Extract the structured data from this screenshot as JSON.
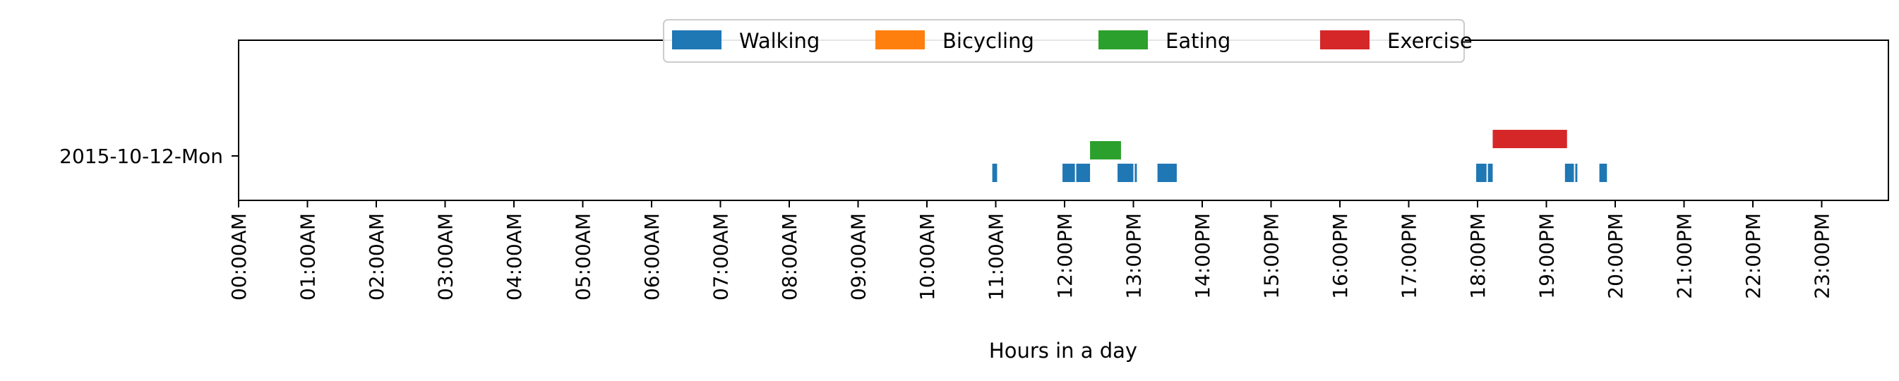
{
  "chart_data": {
    "type": "bar",
    "orientation": "horizontal-timeline",
    "title": "",
    "xlabel": "Hours in a day",
    "ylabel": "",
    "xlim": [
      0,
      24
    ],
    "x_ticks": [
      0,
      1,
      2,
      3,
      4,
      5,
      6,
      7,
      8,
      9,
      10,
      11,
      12,
      13,
      14,
      15,
      16,
      17,
      18,
      19,
      20,
      21,
      22,
      23
    ],
    "x_tick_labels": [
      "00:00AM",
      "01:00AM",
      "02:00AM",
      "03:00AM",
      "04:00AM",
      "05:00AM",
      "06:00AM",
      "07:00AM",
      "08:00AM",
      "09:00AM",
      "10:00AM",
      "11:00AM",
      "12:00PM",
      "13:00PM",
      "14:00PM",
      "15:00PM",
      "16:00PM",
      "17:00PM",
      "18:00PM",
      "19:00PM",
      "20:00PM",
      "21:00PM",
      "22:00PM",
      "23:00PM"
    ],
    "categories": [
      "2015-10-12-Mon"
    ],
    "grid": false,
    "legend_position": "top-center",
    "series": [
      {
        "name": "Walking",
        "color": "#1f77b4",
        "lane": 0,
        "intervals": [
          [
            10.95,
            11.02
          ],
          [
            11.97,
            12.15
          ],
          [
            12.17,
            12.37
          ],
          [
            12.77,
            13.0
          ],
          [
            13.02,
            13.05
          ],
          [
            13.35,
            13.63
          ],
          [
            17.98,
            18.13
          ],
          [
            18.15,
            18.22
          ],
          [
            19.27,
            19.4
          ],
          [
            19.42,
            19.45
          ],
          [
            19.77,
            19.88
          ]
        ]
      },
      {
        "name": "Bicycling",
        "color": "#ff7f0e",
        "lane": 1,
        "intervals": []
      },
      {
        "name": "Eating",
        "color": "#2ca02c",
        "lane": 2,
        "intervals": [
          [
            12.37,
            12.82
          ]
        ]
      },
      {
        "name": "Exercise",
        "color": "#d62728",
        "lane": 3,
        "intervals": [
          [
            18.22,
            19.3
          ]
        ]
      }
    ]
  }
}
